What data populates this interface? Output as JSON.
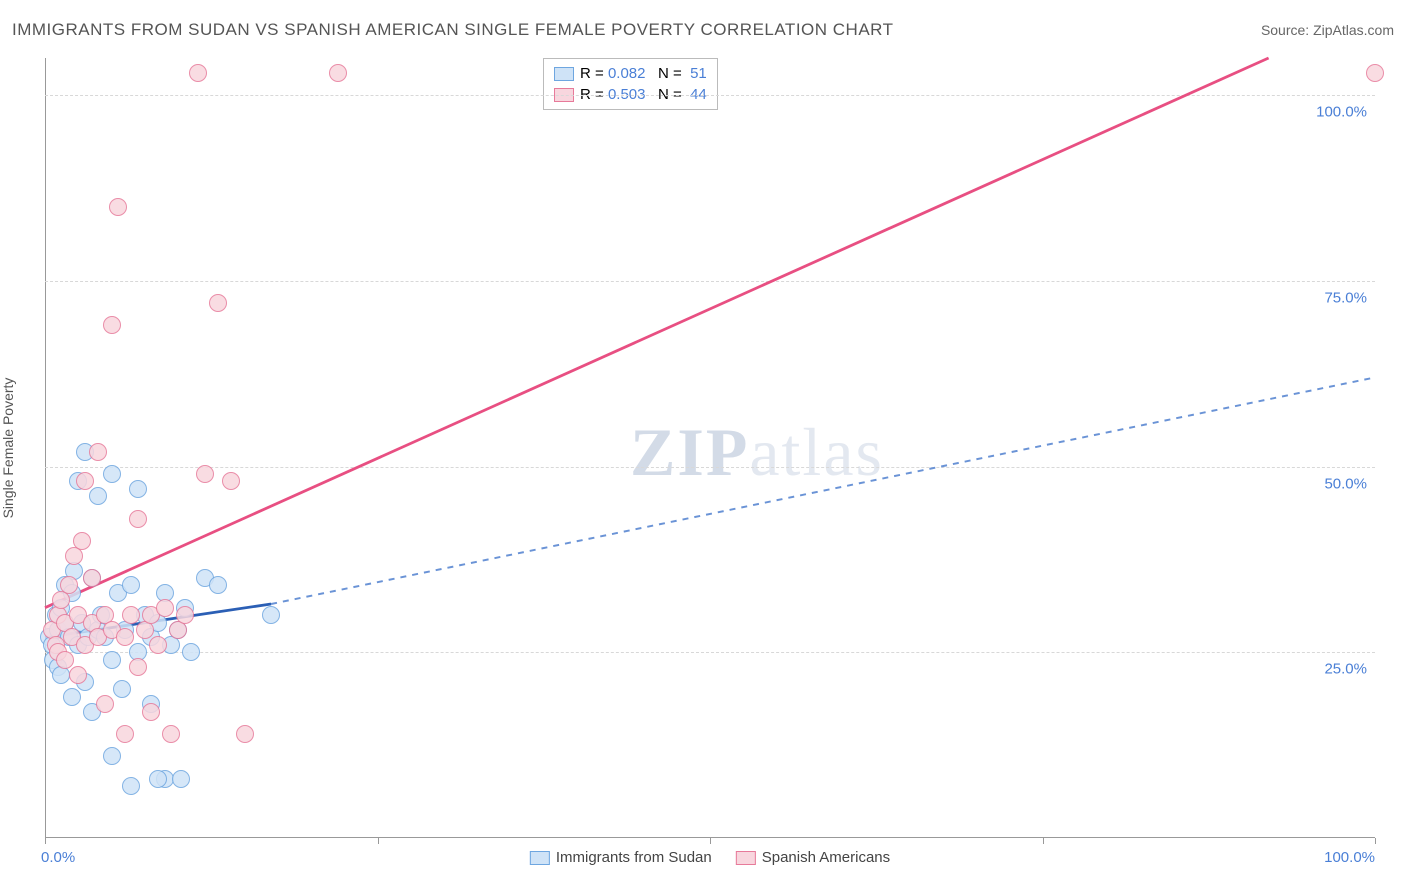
{
  "title": "IMMIGRANTS FROM SUDAN VS SPANISH AMERICAN SINGLE FEMALE POVERTY CORRELATION CHART",
  "source": "Source: ZipAtlas.com",
  "y_axis_label": "Single Female Poverty",
  "watermark_a": "ZIP",
  "watermark_b": "atlas",
  "chart": {
    "type": "scatter",
    "xlim": [
      0,
      100
    ],
    "ylim": [
      0,
      105
    ],
    "y_gridlines": [
      25,
      50,
      75,
      100
    ],
    "x_ticks": [
      0,
      25,
      50,
      75,
      100
    ],
    "y_tick_labels": [
      "25.0%",
      "50.0%",
      "75.0%",
      "100.0%"
    ],
    "x_tick_labels": [
      "0.0%",
      "",
      "",
      "",
      "100.0%"
    ],
    "background_color": "#ffffff",
    "grid_color": "#d8d8d8",
    "axis_color": "#999999",
    "tick_label_color": "#4a7fd6",
    "marker_radius": 9,
    "marker_stroke_width": 1.2,
    "series": [
      {
        "name": "Immigrants from Sudan",
        "fill": "#cfe3f7",
        "stroke": "#6ea6e0",
        "points": [
          [
            0.3,
            27
          ],
          [
            0.5,
            26
          ],
          [
            0.6,
            24
          ],
          [
            0.8,
            30
          ],
          [
            1.0,
            28
          ],
          [
            1.0,
            23
          ],
          [
            1.2,
            31
          ],
          [
            1.2,
            22
          ],
          [
            1.5,
            29
          ],
          [
            1.5,
            34
          ],
          [
            1.8,
            27
          ],
          [
            2.0,
            33
          ],
          [
            2.0,
            19
          ],
          [
            2.2,
            36
          ],
          [
            2.5,
            26
          ],
          [
            2.5,
            48
          ],
          [
            2.8,
            29
          ],
          [
            3.0,
            52
          ],
          [
            3.0,
            21
          ],
          [
            3.2,
            27
          ],
          [
            3.5,
            35
          ],
          [
            3.5,
            17
          ],
          [
            4.0,
            28
          ],
          [
            4.0,
            46
          ],
          [
            4.2,
            30
          ],
          [
            4.5,
            27
          ],
          [
            5.0,
            49
          ],
          [
            5.0,
            24
          ],
          [
            5.5,
            33
          ],
          [
            5.8,
            20
          ],
          [
            6.0,
            28
          ],
          [
            6.5,
            34
          ],
          [
            7.0,
            25
          ],
          [
            7.0,
            47
          ],
          [
            7.5,
            30
          ],
          [
            8.0,
            27
          ],
          [
            8.0,
            18
          ],
          [
            8.5,
            29
          ],
          [
            9.0,
            33
          ],
          [
            9.0,
            8
          ],
          [
            9.5,
            26
          ],
          [
            10.0,
            28
          ],
          [
            10.5,
            31
          ],
          [
            5.0,
            11
          ],
          [
            6.5,
            7
          ],
          [
            8.5,
            8
          ],
          [
            10.2,
            8
          ],
          [
            12.0,
            35
          ],
          [
            13.0,
            34
          ],
          [
            17.0,
            30
          ],
          [
            11.0,
            25
          ]
        ],
        "trend": {
          "x1": 0,
          "y1": 27,
          "x2": 17,
          "y2": 31.5,
          "ext_x": 100,
          "ext_y": 62,
          "solid_color": "#2b5fb5",
          "dash_color": "#6a93d6",
          "width": 2.8,
          "dash": "6 6"
        },
        "r": "0.082",
        "n": "51"
      },
      {
        "name": "Spanish Americans",
        "fill": "#f8d6de",
        "stroke": "#e77a9a",
        "points": [
          [
            0.5,
            28
          ],
          [
            0.8,
            26
          ],
          [
            1.0,
            30
          ],
          [
            1.0,
            25
          ],
          [
            1.2,
            32
          ],
          [
            1.5,
            29
          ],
          [
            1.5,
            24
          ],
          [
            1.8,
            34
          ],
          [
            2.0,
            27
          ],
          [
            2.2,
            38
          ],
          [
            2.5,
            30
          ],
          [
            2.5,
            22
          ],
          [
            2.8,
            40
          ],
          [
            3.0,
            26
          ],
          [
            3.0,
            48
          ],
          [
            3.5,
            29
          ],
          [
            3.5,
            35
          ],
          [
            4.0,
            27
          ],
          [
            4.0,
            52
          ],
          [
            4.5,
            30
          ],
          [
            5.0,
            28
          ],
          [
            5.0,
            69
          ],
          [
            5.5,
            85
          ],
          [
            6.0,
            27
          ],
          [
            6.5,
            30
          ],
          [
            7.0,
            23
          ],
          [
            7.0,
            43
          ],
          [
            7.5,
            28
          ],
          [
            8.0,
            30
          ],
          [
            8.5,
            26
          ],
          [
            9.0,
            31
          ],
          [
            4.5,
            18
          ],
          [
            6.0,
            14
          ],
          [
            8.0,
            17
          ],
          [
            10.0,
            28
          ],
          [
            10.5,
            30
          ],
          [
            11.5,
            103
          ],
          [
            12.0,
            49
          ],
          [
            13.0,
            72
          ],
          [
            14.0,
            48
          ],
          [
            15.0,
            14
          ],
          [
            22.0,
            103
          ],
          [
            100.0,
            103
          ],
          [
            9.5,
            14
          ]
        ],
        "trend": {
          "x1": 0,
          "y1": 31,
          "x2": 92,
          "y2": 105,
          "solid_color": "#e84f82",
          "width": 2.8
        },
        "r": "0.503",
        "n": "44"
      }
    ]
  },
  "legend_top": {
    "r_label": "R =",
    "n_label": "N ="
  },
  "legend_bottom": {
    "items": [
      "Immigrants from Sudan",
      "Spanish Americans"
    ]
  }
}
